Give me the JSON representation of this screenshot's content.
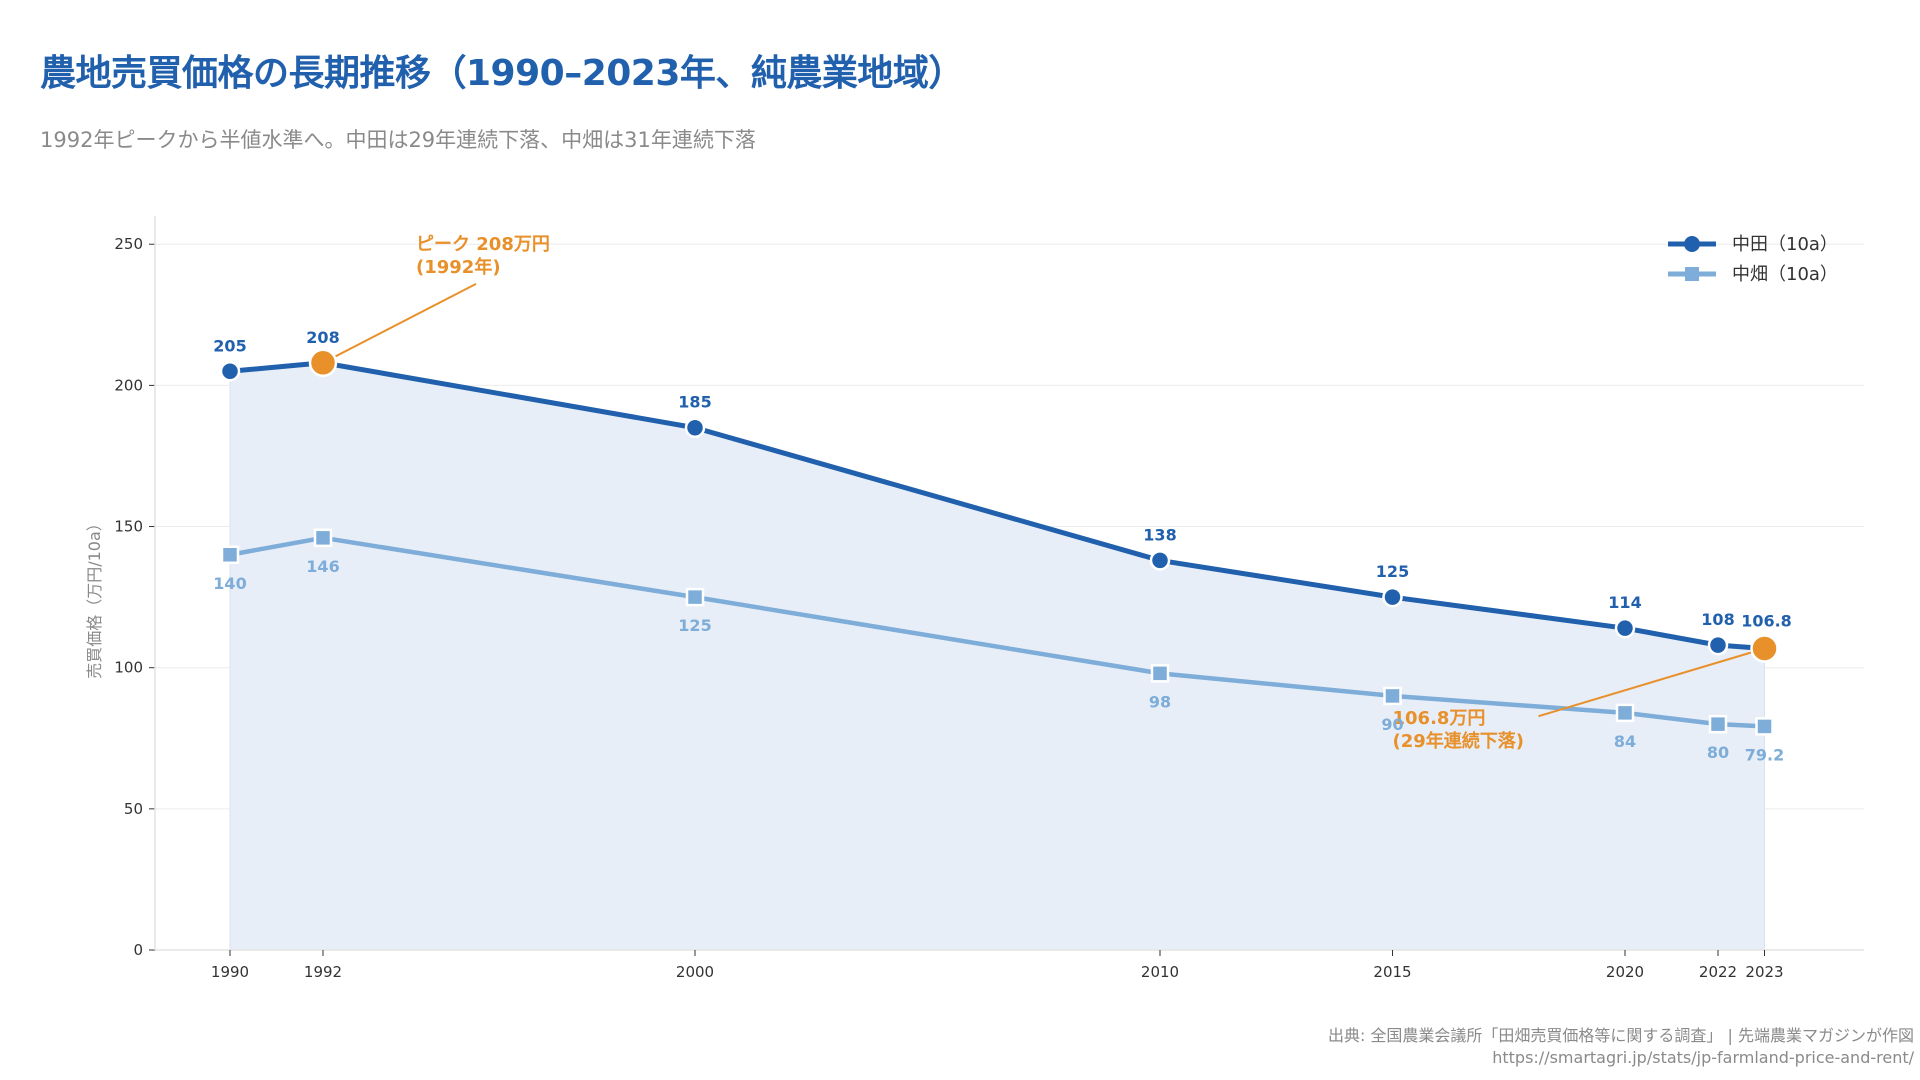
{
  "header": {
    "title": "農地売買価格の長期推移（1990–2023年、純農業地域）",
    "subtitle": "1992年ピークから半値水準へ。中田は29年連続下落、中畑は31年連続下落"
  },
  "footer": {
    "source": "出典: 全国農業会議所「田畑売買価格等に関する調査」 | 先端農業マガジンが作図",
    "url": "https://smartagri.jp/stats/jp-farmland-price-and-rent/"
  },
  "colors": {
    "paddy": "#2160AD",
    "field": "#7DADD8",
    "highlight": "#E8902A",
    "fill": "#E7EEF7",
    "grid": "#ECECEC"
  },
  "chart_data": {
    "type": "line",
    "title": "農地売買価格の長期推移（1990–2023年、純農業地域）",
    "xlabel": "",
    "ylabel": "売買価格（万円/10a）",
    "x": [
      1990,
      1992,
      2000,
      2010,
      2015,
      2020,
      2022,
      2023
    ],
    "x_tick_labels": [
      "1990",
      "1992",
      "2000",
      "2010",
      "2015",
      "2020",
      "2022",
      "2023"
    ],
    "xlim": [
      1988.7,
      2024.7
    ],
    "ylim": [
      0,
      260
    ],
    "y_ticks": [
      0,
      50,
      100,
      150,
      200,
      250
    ],
    "grid": true,
    "legend_position": "top-right",
    "series": [
      {
        "name": "中田（10a）",
        "marker": "circle",
        "values": [
          205,
          208,
          185,
          138,
          125,
          114,
          108,
          106.8
        ],
        "labels": [
          "205",
          "208",
          "185",
          "138",
          "125",
          "114",
          "108",
          "106.8"
        ],
        "area_fill": true
      },
      {
        "name": "中畑（10a）",
        "marker": "square",
        "values": [
          140,
          146,
          125,
          98,
          90,
          84,
          80,
          79.2
        ],
        "labels": [
          "140",
          "146",
          "125",
          "98",
          "90",
          "84",
          "80",
          "79.2"
        ]
      }
    ],
    "annotations": [
      {
        "series": 0,
        "x": 1992,
        "y": 208,
        "lines": [
          "ピーク 208万円",
          "(1992年)"
        ],
        "text_x": 1994,
        "text_y": 248
      },
      {
        "series": 0,
        "x": 2023,
        "y": 106.8,
        "lines": [
          "106.8万円",
          "(29年連続下落)"
        ],
        "text_x": 2015,
        "text_y": 80
      }
    ]
  }
}
